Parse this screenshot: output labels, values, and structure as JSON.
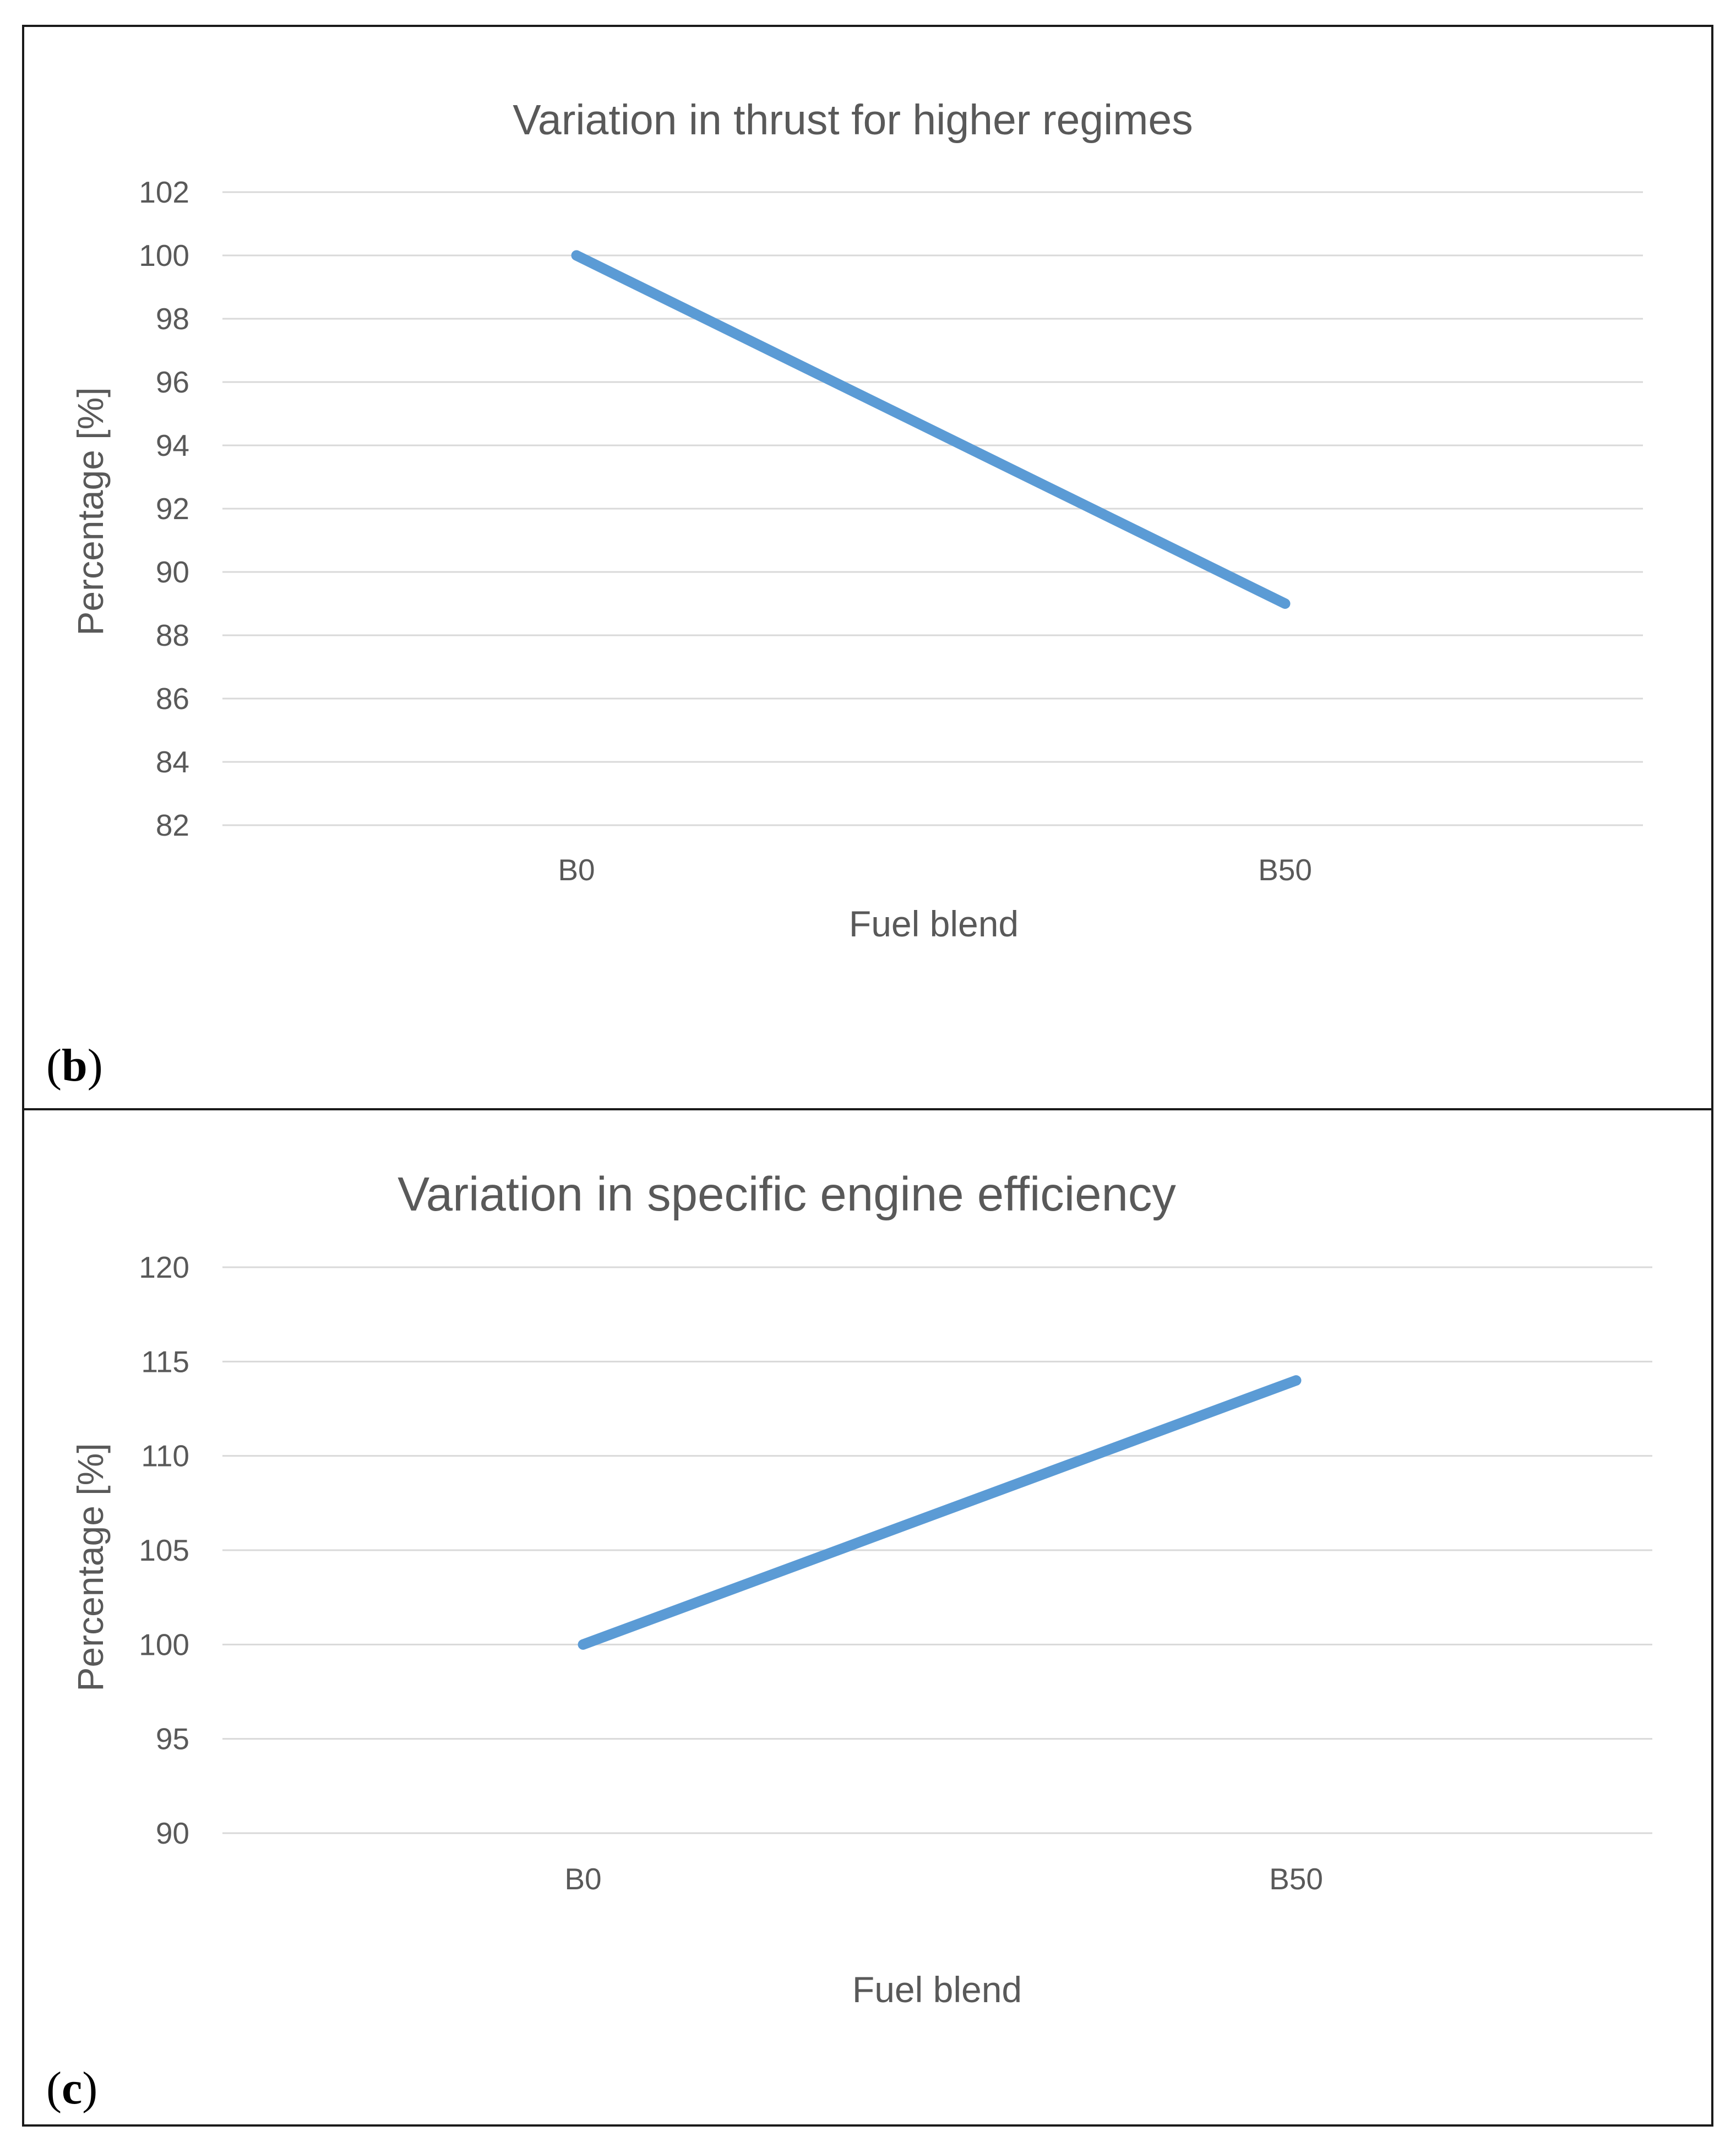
{
  "accent_color": "#5b9bd5",
  "chart_data": [
    {
      "panel": "b",
      "type": "line",
      "title": "Variation in thrust for higher regimes",
      "xlabel": "Fuel blend",
      "ylabel": "Percentage [%]",
      "categories": [
        "B0",
        "B50"
      ],
      "series": [
        {
          "name": "Thrust",
          "values": [
            100,
            89
          ]
        }
      ],
      "ylim": [
        82,
        102
      ],
      "yticks": [
        82,
        84,
        86,
        88,
        90,
        92,
        94,
        96,
        98,
        100,
        102
      ],
      "grid": true,
      "legend": "none"
    },
    {
      "panel": "c",
      "type": "line",
      "title": "Variation in specific engine efficiency",
      "xlabel": "Fuel blend",
      "ylabel": "Percentage [%]",
      "categories": [
        "B0",
        "B50"
      ],
      "series": [
        {
          "name": "Specific engine efficiency",
          "values": [
            100,
            114
          ]
        }
      ],
      "ylim": [
        90,
        120
      ],
      "yticks": [
        90,
        95,
        100,
        105,
        110,
        115,
        120
      ],
      "grid": true,
      "legend": "none"
    }
  ]
}
